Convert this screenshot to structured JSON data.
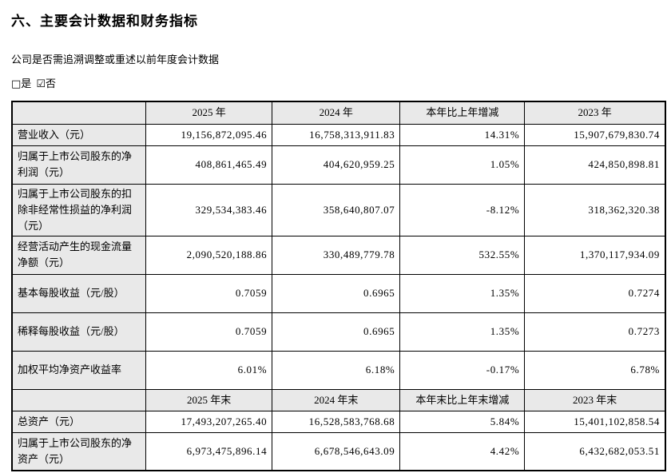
{
  "doc": {
    "title": "六、主要会计数据和财务指标",
    "restatement_question": "公司是否需追溯调整或重述以前年度会计数据",
    "options": {
      "yes_checkbox": "□",
      "yes_label": "是",
      "no_checkbox": "☑",
      "no_label": "否"
    }
  },
  "colors": {
    "header_fill": "#e9e9e9",
    "border": "#000000",
    "text": "#000000"
  },
  "table": {
    "header1": [
      "",
      "2025 年",
      "2024 年",
      "本年比上年增减",
      "2023 年"
    ],
    "rows1": [
      {
        "label": "营业收入（元）",
        "values": [
          "19,156,872,095.46",
          "16,758,313,911.83",
          "14.31%",
          "15,907,679,830.74"
        ]
      },
      {
        "label": "归属于上市公司股东的净利润（元）",
        "values": [
          "408,861,465.49",
          "404,620,959.25",
          "1.05%",
          "424,850,898.81"
        ]
      },
      {
        "label": "归属于上市公司股东的扣除非经常性损益的净利润（元）",
        "values": [
          "329,534,383.46",
          "358,640,807.07",
          "-8.12%",
          "318,362,320.38"
        ]
      },
      {
        "label": "经营活动产生的现金流量净额（元）",
        "values": [
          "2,090,520,188.86",
          "330,489,779.78",
          "532.55%",
          "1,370,117,934.09"
        ]
      },
      {
        "label": "基本每股收益（元/股）",
        "values": [
          "0.7059",
          "0.6965",
          "1.35%",
          "0.7274"
        ]
      },
      {
        "label": "稀释每股收益（元/股）",
        "values": [
          "0.7059",
          "0.6965",
          "1.35%",
          "0.7273"
        ]
      },
      {
        "label": "加权平均净资产收益率",
        "values": [
          "6.01%",
          "6.18%",
          "-0.17%",
          "6.78%"
        ]
      }
    ],
    "header2": [
      "",
      "2025 年末",
      "2024 年末",
      "本年末比上年末增减",
      "2023 年末"
    ],
    "rows2": [
      {
        "label": "总资产（元）",
        "values": [
          "17,493,207,265.40",
          "16,528,583,768.68",
          "5.84%",
          "15,401,102,858.54"
        ]
      },
      {
        "label": "归属于上市公司股东的净资产（元）",
        "values": [
          "6,973,475,896.14",
          "6,678,546,643.09",
          "4.42%",
          "6,432,682,053.51"
        ]
      }
    ]
  }
}
